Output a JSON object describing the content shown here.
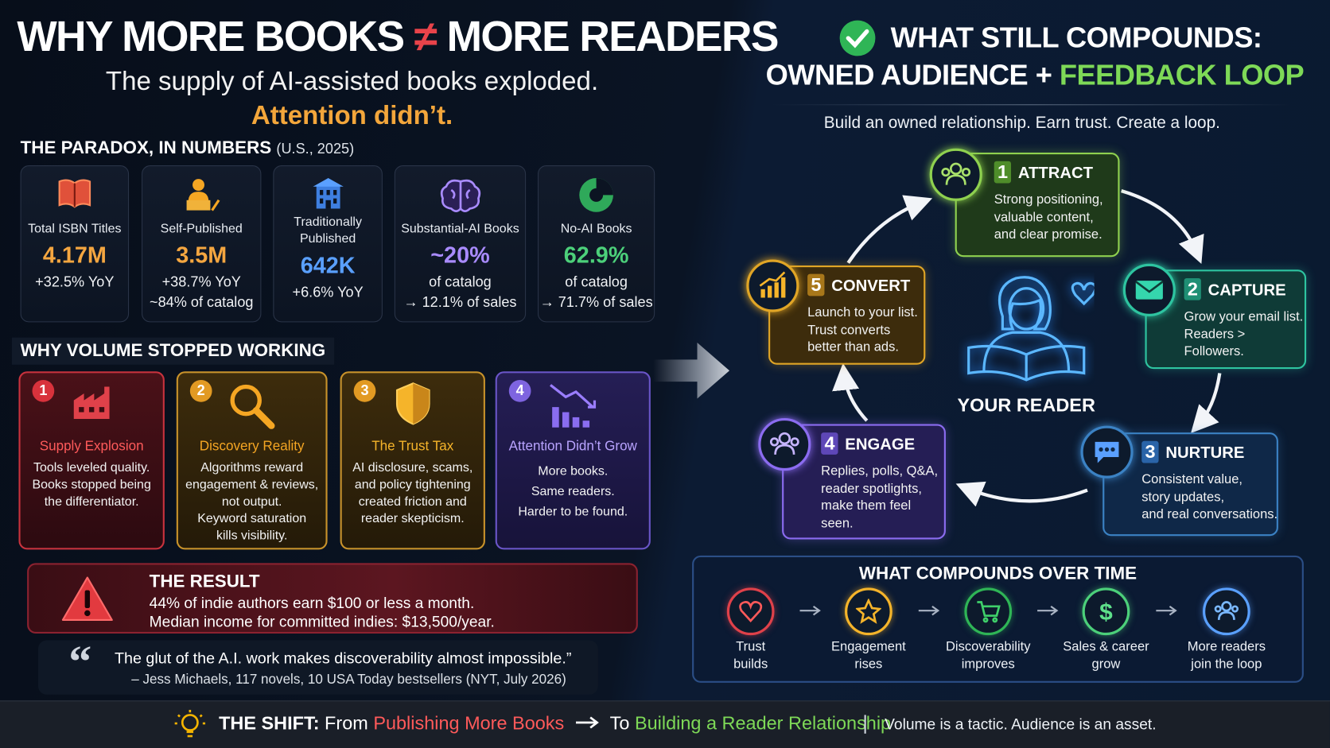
{
  "left": {
    "title_part1": "WHY MORE BOOKS",
    "title_neq": "≠",
    "title_part2": "MORE READERS",
    "subtitle": "The supply of AI-assisted books exploded.",
    "subtitle_accent": "Attention didn’t.",
    "stats_heading": "THE PARADOX, IN NUMBERS",
    "stats_note": "(U.S., 2025)",
    "stats": [
      {
        "label": [
          "Total ISBN Titles"
        ],
        "value": "4.17M",
        "details": [
          "+32.5% YoY"
        ]
      },
      {
        "label": [
          "Self-Published"
        ],
        "value": "3.5M",
        "details": [
          "+38.7% YoY",
          "~84% of catalog"
        ]
      },
      {
        "label": [
          "Traditionally",
          "Published"
        ],
        "value": "642K",
        "details": [
          "+6.6% YoY"
        ]
      },
      {
        "label": [
          "Substantial-AI Books"
        ],
        "value": "~20%",
        "details": [
          "of catalog",
          "→ 12.1% of sales"
        ]
      },
      {
        "label": [
          "No-AI Books"
        ],
        "value": "62.9%",
        "details": [
          "of catalog",
          "→ 71.7% of sales"
        ]
      }
    ],
    "why_heading": "WHY VOLUME STOPPED WORKING",
    "reasons": [
      {
        "number": "1",
        "title": "Supply Explosion",
        "lines": [
          "Tools leveled quality.",
          "Books stopped being",
          "the differentiator."
        ]
      },
      {
        "number": "2",
        "title": "Discovery Reality",
        "lines": [
          "Algorithms reward",
          "engagement & reviews,",
          "not output.",
          "Keyword saturation",
          "kills visibility."
        ]
      },
      {
        "number": "3",
        "title": "The Trust Tax",
        "lines": [
          "AI disclosure, scams,",
          "and policy tightening",
          "created friction and",
          "reader skepticism."
        ]
      },
      {
        "number": "4",
        "title": "Attention Didn’t Grow",
        "lines": [
          "More books.",
          "Same readers.",
          "Harder to be found."
        ]
      }
    ],
    "result": {
      "title": "THE RESULT",
      "lines": [
        "44% of indie authors earn $100 or less a month.",
        "Median income for committed indies: $13,500/year."
      ]
    },
    "quote": {
      "text": "The glut of the A.I. work makes discoverability almost impossible.”",
      "attribution": "– Jess Michaels, 117 novels, 10 USA Today bestsellers (NYT, July 2026)"
    }
  },
  "right": {
    "title_line1": "WHAT STILL COMPOUNDS:",
    "title_line2a": "OWNED AUDIENCE +",
    "title_line2b": "FEEDBACK LOOP",
    "tagline": "Build an owned relationship. Earn trust. Create a loop.",
    "center_label": "YOUR READER",
    "steps": [
      {
        "number": "1",
        "title": "ATTRACT",
        "lines": [
          "Strong positioning,",
          "valuable content,",
          "and clear promise."
        ]
      },
      {
        "number": "2",
        "title": "CAPTURE",
        "lines": [
          "Grow your email list.",
          "Readers >",
          "Followers."
        ]
      },
      {
        "number": "3",
        "title": "NURTURE",
        "lines": [
          "Consistent value,",
          "story updates,",
          "and real conversations."
        ]
      },
      {
        "number": "4",
        "title": "ENGAGE",
        "lines": [
          "Replies, polls, Q&A,",
          "reader spotlights,",
          "make them feel",
          "seen."
        ]
      },
      {
        "number": "5",
        "title": "CONVERT",
        "lines": [
          "Launch to your list.",
          "Trust converts",
          "better than ads."
        ]
      }
    ],
    "compounds_heading": "WHAT COMPOUNDS OVER TIME",
    "compounds": [
      [
        "Trust",
        "builds"
      ],
      [
        "Engagement",
        "rises"
      ],
      [
        "Discoverability",
        "improves"
      ],
      [
        "Sales & career",
        "grow"
      ],
      [
        "More readers",
        "join the loop"
      ]
    ]
  },
  "footer": {
    "shift_label": "THE SHIFT:",
    "from": "From",
    "from_value": "Publishing More Books",
    "to": "To",
    "to_value": "Building a Reader Relationship",
    "closing": "Volume is a tactic. Audience is an asset."
  }
}
